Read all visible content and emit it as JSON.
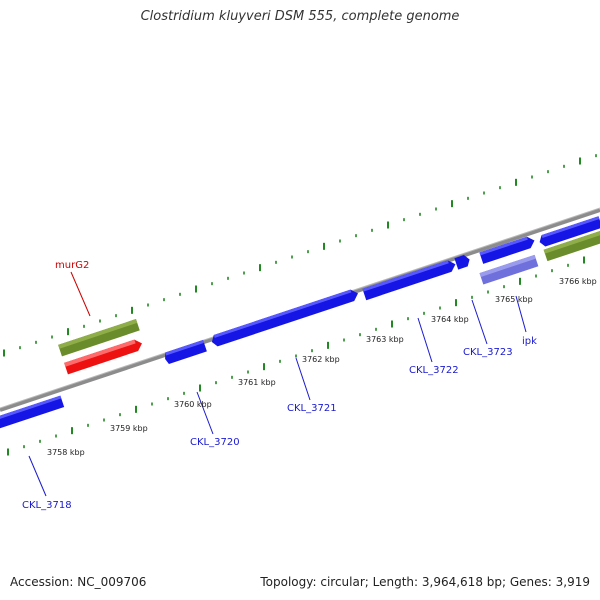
{
  "title": "Clostridium kluyveri DSM 555, complete genome",
  "footer": {
    "accession": "Accession: NC_009706",
    "stats": "Topology: circular; Length: 3,964,618 bp; Genes: 3,919"
  },
  "colors": {
    "backbone": "#8c8c8c",
    "gene_forward": "#1515e6",
    "gene_reverse": "#1515e6",
    "highlight_gene": "#ee1111",
    "rna_olive": "#6b8c2a",
    "lavender_gene": "#7070dd",
    "ticks": "#228822",
    "label_blue": "#1a1ad0",
    "label_red": "#cc0000"
  },
  "scale_labels": [
    "3758 kbp",
    "3759 kbp",
    "3760 kbp",
    "3761 kbp",
    "3762 kbp",
    "3763 kbp",
    "3764 kbp",
    "3765 kbp",
    "3766 kbp"
  ],
  "gene_labels": [
    "murG2",
    "CKL_3718",
    "CKL_3720",
    "CKL_3721",
    "CKL_3722",
    "CKL_3723",
    "ipk"
  ]
}
